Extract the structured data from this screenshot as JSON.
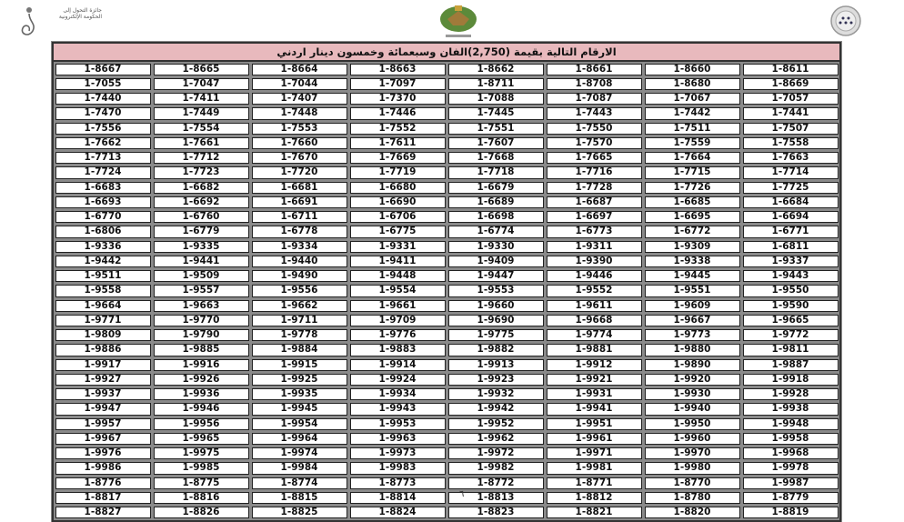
{
  "header": {
    "left_logo_text": "جائزة التحول إلى الحكومة الإلكترونية",
    "title": "الارقام التالية بقيمة  (2,750)الفان وسبعمائة وخمسون دينار اردني"
  },
  "table": {
    "rows": [
      [
        "1-8667",
        "1-8665",
        "1-8664",
        "1-8663",
        "1-8662",
        "1-8661",
        "1-8660",
        "1-8611"
      ],
      [
        "1-7055",
        "1-7047",
        "1-7044",
        "1-7097",
        "1-8711",
        "1-8708",
        "1-8680",
        "1-8669"
      ],
      [
        "1-7440",
        "1-7411",
        "1-7407",
        "1-7370",
        "1-7088",
        "1-7087",
        "1-7067",
        "1-7057"
      ],
      [
        "1-7470",
        "1-7449",
        "1-7448",
        "1-7446",
        "1-7445",
        "1-7443",
        "1-7442",
        "1-7441"
      ],
      [
        "1-7556",
        "1-7554",
        "1-7553",
        "1-7552",
        "1-7551",
        "1-7550",
        "1-7511",
        "1-7507"
      ],
      [
        "1-7662",
        "1-7661",
        "1-7660",
        "1-7611",
        "1-7607",
        "1-7570",
        "1-7559",
        "1-7558"
      ],
      [
        "1-7713",
        "1-7712",
        "1-7670",
        "1-7669",
        "1-7668",
        "1-7665",
        "1-7664",
        "1-7663"
      ],
      [
        "1-7724",
        "1-7723",
        "1-7720",
        "1-7719",
        "1-7718",
        "1-7716",
        "1-7715",
        "1-7714"
      ],
      [
        "1-6683",
        "1-6682",
        "1-6681",
        "1-6680",
        "1-6679",
        "1-7728",
        "1-7726",
        "1-7725"
      ],
      [
        "1-6693",
        "1-6692",
        "1-6691",
        "1-6690",
        "1-6689",
        "1-6687",
        "1-6685",
        "1-6684"
      ],
      [
        "1-6770",
        "1-6760",
        "1-6711",
        "1-6706",
        "1-6698",
        "1-6697",
        "1-6695",
        "1-6694"
      ],
      [
        "1-6806",
        "1-6779",
        "1-6778",
        "1-6775",
        "1-6774",
        "1-6773",
        "1-6772",
        "1-6771"
      ],
      [
        "1-9336",
        "1-9335",
        "1-9334",
        "1-9331",
        "1-9330",
        "1-9311",
        "1-9309",
        "1-6811"
      ],
      [
        "1-9442",
        "1-9441",
        "1-9440",
        "1-9411",
        "1-9409",
        "1-9390",
        "1-9338",
        "1-9337"
      ],
      [
        "1-9511",
        "1-9509",
        "1-9490",
        "1-9448",
        "1-9447",
        "1-9446",
        "1-9445",
        "1-9443"
      ],
      [
        "1-9558",
        "1-9557",
        "1-9556",
        "1-9554",
        "1-9553",
        "1-9552",
        "1-9551",
        "1-9550"
      ],
      [
        "1-9664",
        "1-9663",
        "1-9662",
        "1-9661",
        "1-9660",
        "1-9611",
        "1-9609",
        "1-9590"
      ],
      [
        "1-9771",
        "1-9770",
        "1-9711",
        "1-9709",
        "1-9690",
        "1-9668",
        "1-9667",
        "1-9665"
      ],
      [
        "1-9809",
        "1-9790",
        "1-9778",
        "1-9776",
        "1-9775",
        "1-9774",
        "1-9773",
        "1-9772"
      ],
      [
        "1-9886",
        "1-9885",
        "1-9884",
        "1-9883",
        "1-9882",
        "1-9881",
        "1-9880",
        "1-9811"
      ],
      [
        "1-9917",
        "1-9916",
        "1-9915",
        "1-9914",
        "1-9913",
        "1-9912",
        "1-9890",
        "1-9887"
      ],
      [
        "1-9927",
        "1-9926",
        "1-9925",
        "1-9924",
        "1-9923",
        "1-9921",
        "1-9920",
        "1-9918"
      ],
      [
        "1-9937",
        "1-9936",
        "1-9935",
        "1-9934",
        "1-9932",
        "1-9931",
        "1-9930",
        "1-9928"
      ],
      [
        "1-9947",
        "1-9946",
        "1-9945",
        "1-9943",
        "1-9942",
        "1-9941",
        "1-9940",
        "1-9938"
      ],
      [
        "1-9957",
        "1-9956",
        "1-9954",
        "1-9953",
        "1-9952",
        "1-9951",
        "1-9950",
        "1-9948"
      ],
      [
        "1-9967",
        "1-9965",
        "1-9964",
        "1-9963",
        "1-9962",
        "1-9961",
        "1-9960",
        "1-9958"
      ],
      [
        "1-9976",
        "1-9975",
        "1-9974",
        "1-9973",
        "1-9972",
        "1-9971",
        "1-9970",
        "1-9968"
      ],
      [
        "1-9986",
        "1-9985",
        "1-9984",
        "1-9983",
        "1-9982",
        "1-9981",
        "1-9980",
        "1-9978"
      ],
      [
        "1-8776",
        "1-8775",
        "1-8774",
        "1-8773",
        "1-8772",
        "1-8771",
        "1-8770",
        "1-9987"
      ],
      [
        "1-8817",
        "1-8816",
        "1-8815",
        "1-8814",
        "1-8813",
        "1-8812",
        "1-8780",
        "1-8779"
      ],
      [
        "1-8827",
        "1-8826",
        "1-8825",
        "1-8824",
        "1-8823",
        "1-8821",
        "1-8820",
        "1-8819"
      ]
    ]
  },
  "footer": {
    "page_number": "٦"
  },
  "colors": {
    "title_bar": "#e8b9bd",
    "border": "#333333"
  }
}
